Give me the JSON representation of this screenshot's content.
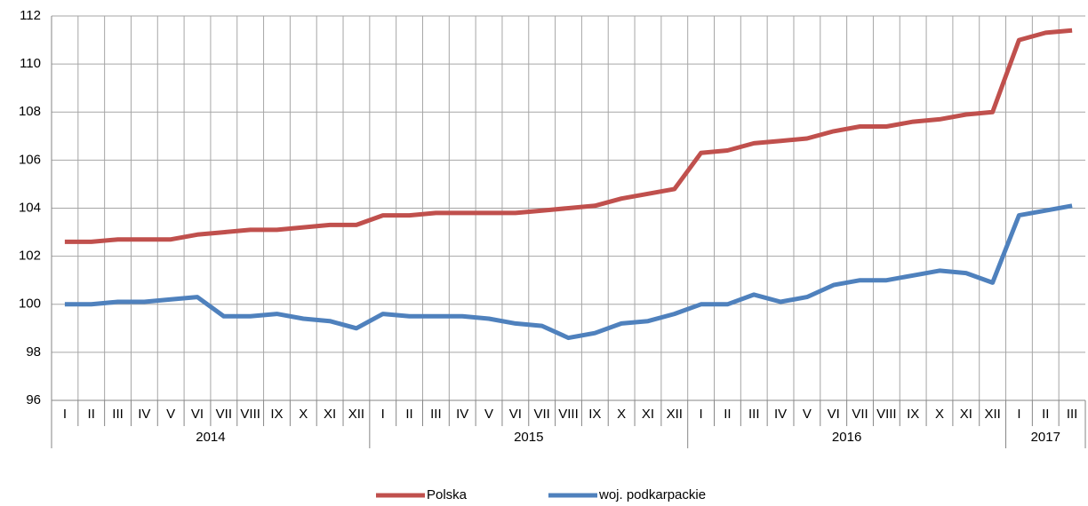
{
  "chart_data": {
    "type": "line",
    "categories": [
      "I",
      "II",
      "III",
      "IV",
      "V",
      "VI",
      "VII",
      "VIII",
      "IX",
      "X",
      "XI",
      "XII",
      "I",
      "II",
      "III",
      "IV",
      "V",
      "VI",
      "VII",
      "VIII",
      "IX",
      "X",
      "XI",
      "XII",
      "I",
      "II",
      "III",
      "IV",
      "V",
      "VI",
      "VII",
      "VIII",
      "IX",
      "X",
      "XI",
      "XII",
      "I",
      "II",
      "III"
    ],
    "groups": [
      "2014",
      "2015",
      "2016",
      "2017"
    ],
    "series": [
      {
        "name": "Polska",
        "color": "#c0504d",
        "values": [
          102.6,
          102.6,
          102.7,
          102.7,
          102.7,
          102.9,
          103.0,
          103.1,
          103.1,
          103.2,
          103.3,
          103.3,
          103.7,
          103.7,
          103.8,
          103.8,
          103.8,
          103.8,
          103.9,
          104.0,
          104.1,
          104.4,
          104.6,
          104.8,
          106.3,
          106.4,
          106.7,
          106.8,
          106.9,
          107.2,
          107.4,
          107.4,
          107.6,
          107.7,
          107.9,
          108.0,
          111.0,
          111.3,
          111.4
        ]
      },
      {
        "name": "woj. podkarpackie",
        "color": "#4f81bd",
        "values": [
          100.0,
          100.0,
          100.1,
          100.1,
          100.2,
          100.3,
          99.5,
          99.5,
          99.6,
          99.4,
          99.3,
          99.0,
          99.6,
          99.5,
          99.5,
          99.5,
          99.4,
          99.2,
          99.1,
          98.6,
          98.8,
          99.2,
          99.3,
          99.6,
          100.0,
          100.0,
          100.4,
          100.1,
          100.3,
          100.8,
          101.0,
          101.0,
          101.2,
          101.4,
          101.3,
          100.9,
          103.7,
          103.9,
          104.1
        ]
      }
    ],
    "ylim": [
      96,
      112
    ],
    "yticks": [
      96,
      98,
      100,
      102,
      104,
      106,
      108,
      110,
      112
    ],
    "grid": true,
    "legend": "bottom"
  }
}
